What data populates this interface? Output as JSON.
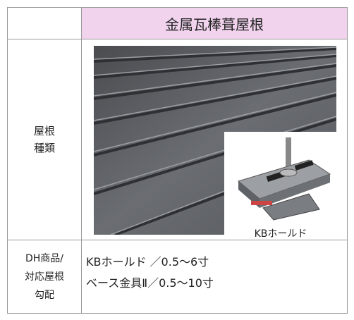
{
  "table": {
    "header": "金属瓦棒葺屋根",
    "rows": [
      {
        "label_lines": [
          "屋根",
          "種類"
        ],
        "image_caption": "KBホールド"
      },
      {
        "label_lines": [
          "DH商品/",
          "対応屋根",
          "勾配"
        ],
        "lines": [
          "KBホールド ／0.5～6寸",
          "ベース金具Ⅱ／0.5～10寸"
        ]
      }
    ]
  }
}
